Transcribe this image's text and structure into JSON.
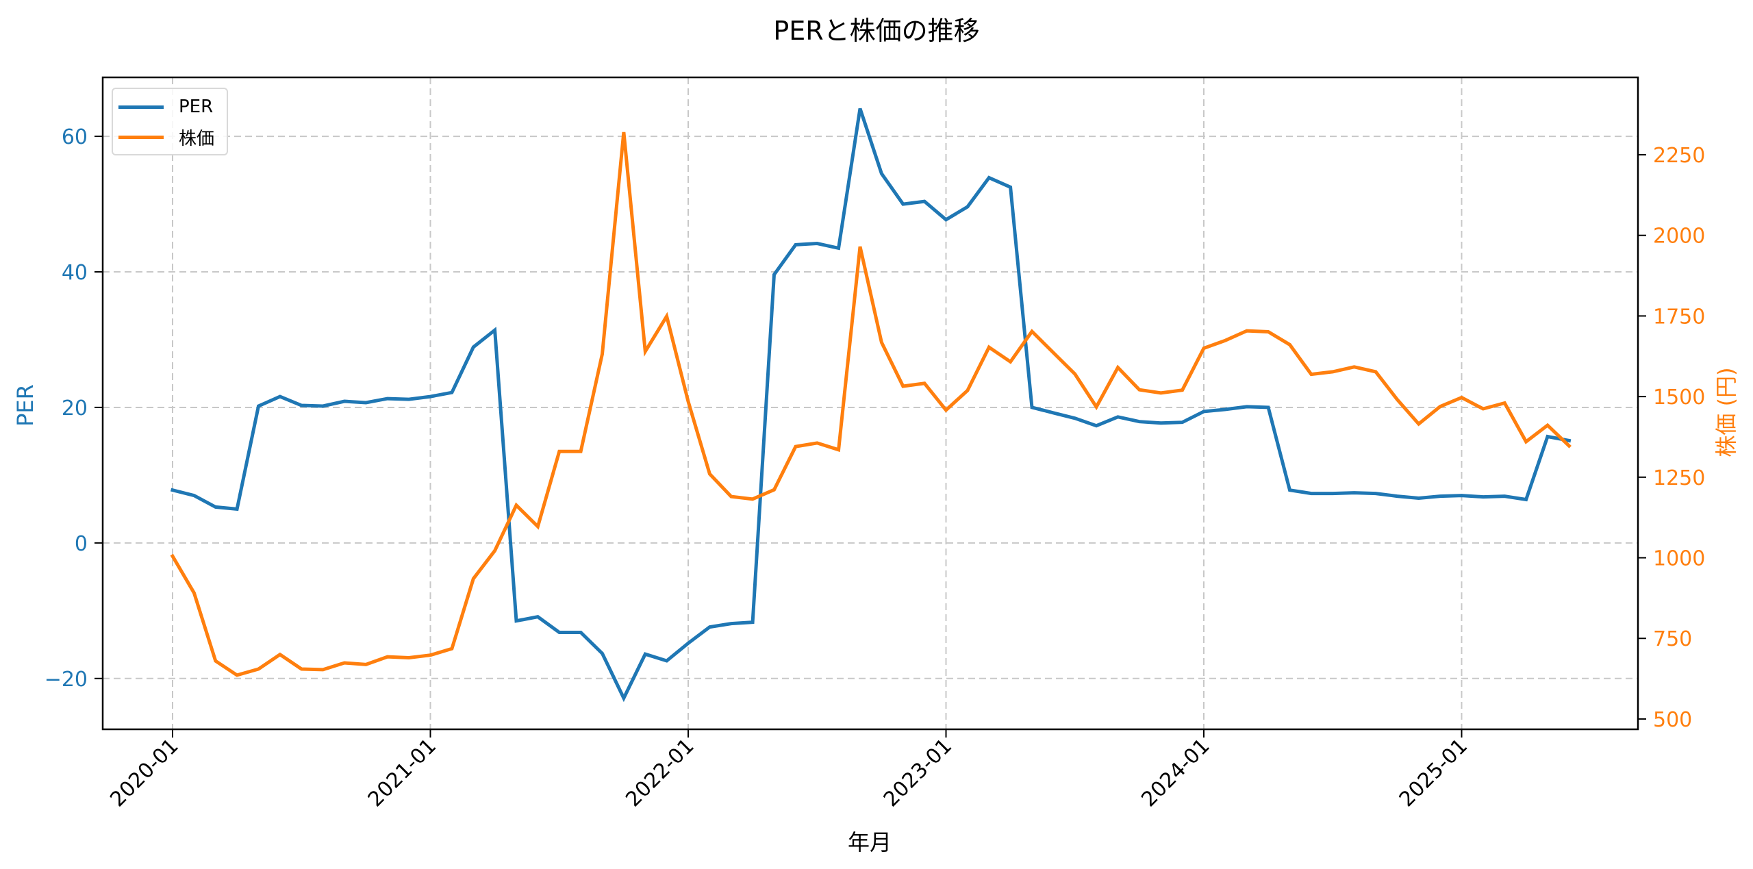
{
  "title": "PERと株価の推移",
  "xlabel": "年月",
  "ylabel_left": "PER",
  "ylabel_right": "株価 (円)",
  "colors": {
    "per": "#1f77b4",
    "price": "#ff7f0e",
    "grid": "#c8c8c8",
    "axis": "#000000"
  },
  "legend": [
    {
      "label": "PER",
      "color": "#1f77b4"
    },
    {
      "label": "株価",
      "color": "#ff7f0e"
    }
  ],
  "chart_data": {
    "type": "line",
    "title": "PERと株価の推移",
    "xlabel": "年月",
    "ylabel": "PER",
    "ylabel_secondary": "株価 (円)",
    "x_ticks": [
      "2020-01",
      "2021-01",
      "2022-01",
      "2023-01",
      "2024-01",
      "2025-01"
    ],
    "y_ticks_left": [
      -20,
      0,
      20,
      40,
      60
    ],
    "y_ticks_right": [
      500,
      750,
      1000,
      1250,
      1500,
      1750,
      2000,
      2250
    ],
    "ylim_left": [
      -27.5,
      68.7
    ],
    "ylim_right": [
      468,
      2490
    ],
    "grid": true,
    "legend_position": "upper left",
    "x": [
      "2020-01",
      "2020-02",
      "2020-03",
      "2020-04",
      "2020-05",
      "2020-06",
      "2020-07",
      "2020-08",
      "2020-09",
      "2020-10",
      "2020-11",
      "2020-12",
      "2021-01",
      "2021-02",
      "2021-03",
      "2021-04",
      "2021-05",
      "2021-06",
      "2021-07",
      "2021-08",
      "2021-09",
      "2021-10",
      "2021-11",
      "2021-12",
      "2022-01",
      "2022-02",
      "2022-03",
      "2022-04",
      "2022-05",
      "2022-06",
      "2022-07",
      "2022-08",
      "2022-09",
      "2022-10",
      "2022-11",
      "2022-12",
      "2023-01",
      "2023-02",
      "2023-03",
      "2023-04",
      "2023-05",
      "2023-06",
      "2023-07",
      "2023-08",
      "2023-09",
      "2023-10",
      "2023-11",
      "2023-12",
      "2024-01",
      "2024-02",
      "2024-03",
      "2024-04",
      "2024-05",
      "2024-06",
      "2024-07",
      "2024-08",
      "2024-09",
      "2024-10",
      "2024-11",
      "2024-12",
      "2025-01",
      "2025-02",
      "2025-03",
      "2025-04",
      "2025-05",
      "2025-06"
    ],
    "series": [
      {
        "name": "PER",
        "axis": "left",
        "color": "#1f77b4",
        "values": [
          7.8,
          7.0,
          5.3,
          5.0,
          20.2,
          21.6,
          20.3,
          20.2,
          20.9,
          20.7,
          21.3,
          21.2,
          21.6,
          22.2,
          28.9,
          31.4,
          -11.5,
          -10.9,
          -13.2,
          -13.2,
          -16.3,
          -22.9,
          -16.4,
          -17.4,
          -14.8,
          -12.4,
          -11.9,
          -11.7,
          39.6,
          44.0,
          44.2,
          43.5,
          64.1,
          54.5,
          50.0,
          50.4,
          47.7,
          49.6,
          53.9,
          52.5,
          20.0,
          19.2,
          18.4,
          17.3,
          18.6,
          17.9,
          17.7,
          17.8,
          19.4,
          19.7,
          20.1,
          20.0,
          7.8,
          7.3,
          7.3,
          7.4,
          7.3,
          6.9,
          6.6,
          6.9,
          7.0,
          6.8,
          6.9,
          6.4,
          15.7,
          15.1
        ]
      },
      {
        "name": "株価",
        "axis": "right",
        "color": "#ff7f0e",
        "values": [
          1005,
          891,
          680,
          636,
          655,
          700,
          655,
          653,
          674,
          669,
          693,
          690,
          698,
          718,
          935,
          1022,
          1163,
          1097,
          1330,
          1330,
          1632,
          2320,
          1640,
          1749,
          1485,
          1260,
          1190,
          1182,
          1211,
          1345,
          1356,
          1335,
          1965,
          1668,
          1532,
          1541,
          1458,
          1519,
          1653,
          1608,
          1702,
          1636,
          1570,
          1468,
          1590,
          1521,
          1511,
          1520,
          1650,
          1674,
          1704,
          1701,
          1661,
          1569,
          1577,
          1592,
          1577,
          1491,
          1415,
          1469,
          1497,
          1462,
          1480,
          1360,
          1411,
          1347
        ]
      }
    ]
  }
}
